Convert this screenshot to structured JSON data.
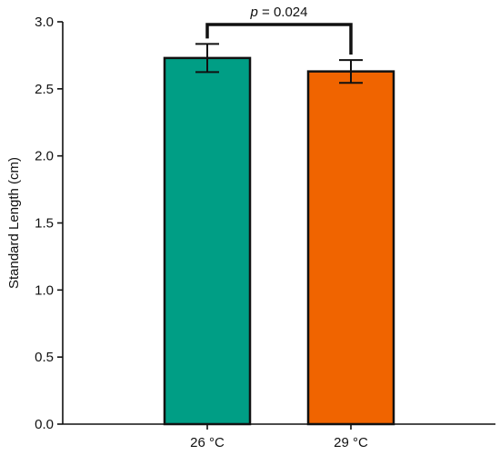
{
  "chart_data": {
    "type": "bar",
    "categories": [
      "26 °C",
      "29 °C"
    ],
    "values": [
      2.73,
      2.63
    ],
    "errors": [
      0.105,
      0.085
    ],
    "bar_colors": [
      "#009e85",
      "#f06400"
    ],
    "edge_color": "#111111",
    "ylabel": "Standard Length (cm)",
    "xlabel": "",
    "title": "",
    "ylim": [
      0.0,
      3.0
    ],
    "yticks": [
      "0.0",
      "0.5",
      "1.0",
      "1.5",
      "2.0",
      "2.5",
      "3.0"
    ],
    "ytick_values": [
      0.0,
      0.5,
      1.0,
      1.5,
      2.0,
      2.5,
      3.0
    ],
    "grid": false,
    "annotation": {
      "p_symbol": "p",
      "p_rest": " = 0.024"
    }
  }
}
